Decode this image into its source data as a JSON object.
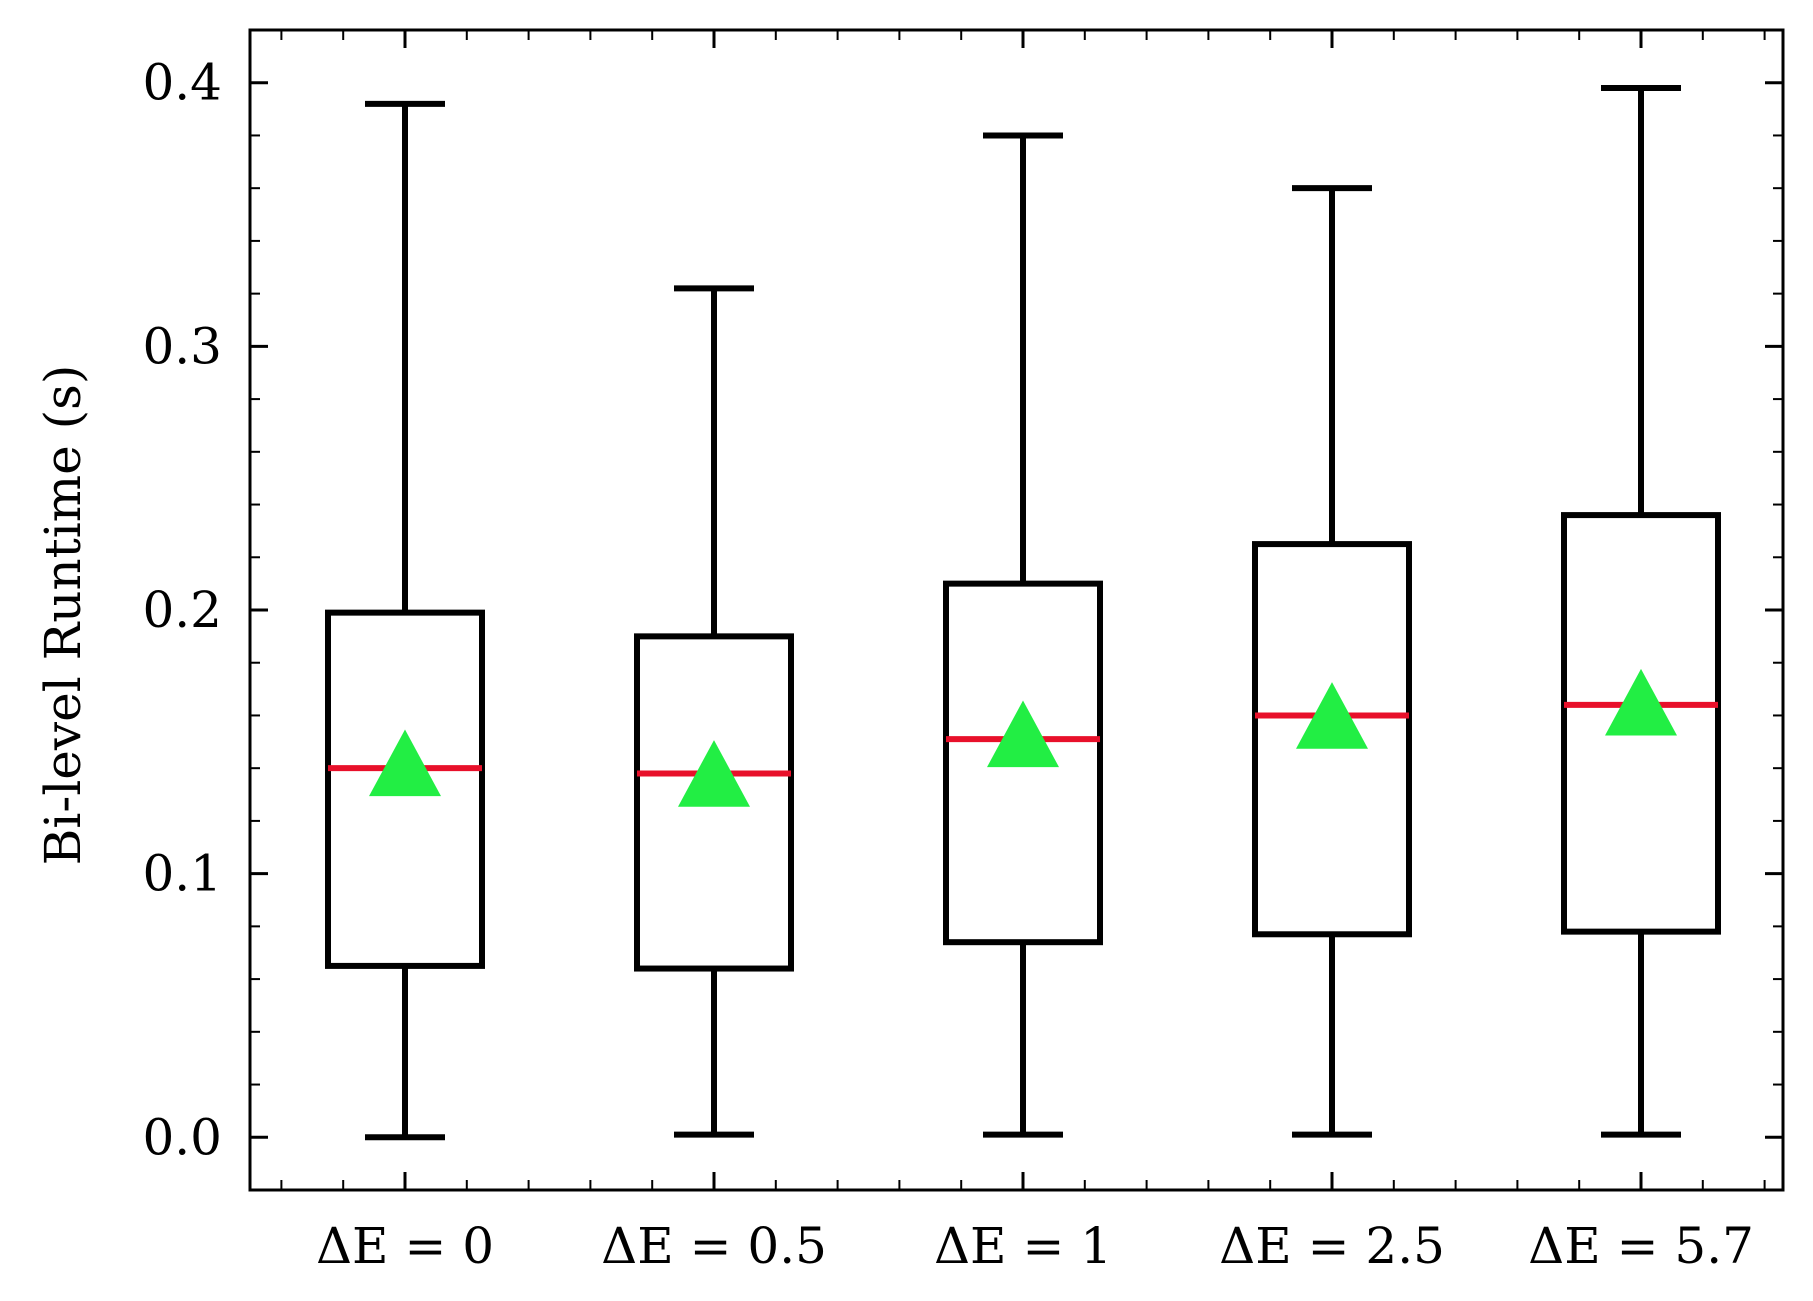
{
  "chart_data": {
    "type": "box",
    "categories": [
      "ΔE = 0",
      "ΔE = 0.5",
      "ΔE = 1",
      "ΔE = 2.5",
      "ΔE = 5.7"
    ],
    "ylabel": "Bi-level Runtime (s)",
    "xlabel": "",
    "ylim": [
      -0.02,
      0.42
    ],
    "yticks": [
      0.0,
      0.1,
      0.2,
      0.3,
      0.4
    ],
    "ytick_labels": [
      "0.0",
      "0.1",
      "0.2",
      "0.3",
      "0.4"
    ],
    "boxes": [
      {
        "whisker_low": 0.0,
        "q1": 0.065,
        "median": 0.14,
        "mean": 0.141,
        "q3": 0.199,
        "whisker_high": 0.392
      },
      {
        "whisker_low": 0.001,
        "q1": 0.064,
        "median": 0.138,
        "mean": 0.137,
        "q3": 0.19,
        "whisker_high": 0.322
      },
      {
        "whisker_low": 0.001,
        "q1": 0.074,
        "median": 0.151,
        "mean": 0.152,
        "q3": 0.21,
        "whisker_high": 0.38
      },
      {
        "whisker_low": 0.001,
        "q1": 0.077,
        "median": 0.16,
        "mean": 0.159,
        "q3": 0.225,
        "whisker_high": 0.36
      },
      {
        "whisker_low": 0.001,
        "q1": 0.078,
        "median": 0.164,
        "mean": 0.164,
        "q3": 0.236,
        "whisker_high": 0.398
      }
    ],
    "colors": {
      "box": "#000000",
      "median": "#e8102a",
      "mean": "#22ee44"
    },
    "grid": false
  }
}
